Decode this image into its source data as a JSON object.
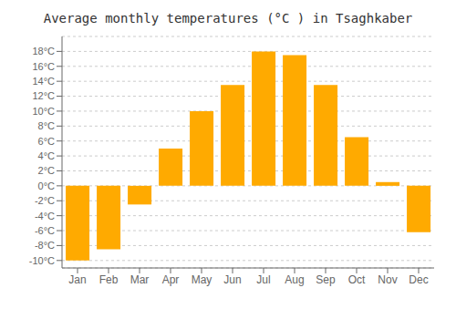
{
  "chart_data": {
    "type": "bar",
    "title": "Average monthly temperatures (°C ) in Tsaghkaber",
    "categories": [
      "Jan",
      "Feb",
      "Mar",
      "Apr",
      "May",
      "Jun",
      "Jul",
      "Aug",
      "Sep",
      "Oct",
      "Nov",
      "Dec"
    ],
    "values": [
      -10,
      -8.5,
      -2.5,
      5,
      10,
      13.5,
      18,
      17.5,
      13.5,
      6.5,
      0.5,
      -6.2
    ],
    "color": "#FFAA00",
    "ylim": [
      -11,
      20
    ],
    "yticks": [
      {
        "value": -10,
        "label": "-10°C"
      },
      {
        "value": -8,
        "label": "-8°C"
      },
      {
        "value": -6,
        "label": "-6°C"
      },
      {
        "value": -4,
        "label": "-4°C"
      },
      {
        "value": -2,
        "label": "-2°C"
      },
      {
        "value": 0,
        "label": "0°C"
      },
      {
        "value": 2,
        "label": "2°C"
      },
      {
        "value": 4,
        "label": "4°C"
      },
      {
        "value": 6,
        "label": "6°C"
      },
      {
        "value": 8,
        "label": "8°C"
      },
      {
        "value": 10,
        "label": "10°C"
      },
      {
        "value": 12,
        "label": "12°C"
      },
      {
        "value": 14,
        "label": "14°C"
      },
      {
        "value": 16,
        "label": "16°C"
      },
      {
        "value": 18,
        "label": "18°C"
      }
    ],
    "grid": true
  }
}
